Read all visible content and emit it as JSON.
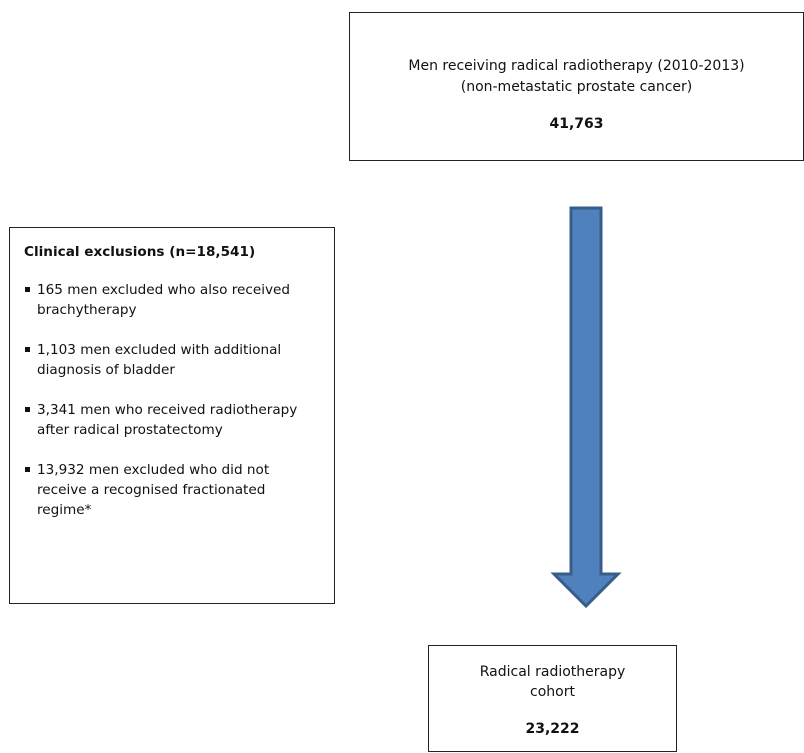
{
  "top_box": {
    "line1": "Men receiving radical radiotherapy (2010-2013)",
    "line2": "(non-metastatic prostate cancer)",
    "count": "41,763"
  },
  "exclusions": {
    "heading": "Clinical exclusions (n=18,541)",
    "items": [
      "165 men excluded who also received brachytherapy",
      "1,103 men excluded with additional diagnosis of bladder",
      "3,341 men who received radiotherapy after radical prostatectomy",
      "13,932  men excluded who did not receive a recognised fractionated regime*"
    ]
  },
  "bottom_box": {
    "line1": "Radical radiotherapy",
    "line2": "cohort",
    "count": "23,222"
  },
  "colors": {
    "arrow_fill": "#4f81bd",
    "arrow_stroke": "#385d8a"
  }
}
